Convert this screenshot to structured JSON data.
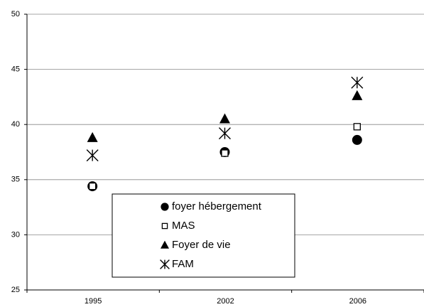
{
  "chart_data": {
    "type": "scatter",
    "categories": [
      "1995",
      "2002",
      "2006"
    ],
    "series": [
      {
        "name": "foyer hébergement",
        "marker": "circle",
        "color": "#000000",
        "values": [
          34.4,
          37.5,
          38.6
        ]
      },
      {
        "name": "MAS",
        "marker": "square",
        "color": "#000000",
        "values": [
          34.4,
          37.4,
          39.8
        ]
      },
      {
        "name": "Foyer de vie",
        "marker": "triangle",
        "color": "#000000",
        "values": [
          38.8,
          40.5,
          42.6
        ]
      },
      {
        "name": "FAM",
        "marker": "asterisk",
        "color": "#000000",
        "values": [
          37.2,
          39.2,
          43.8
        ]
      }
    ],
    "ylim": [
      25,
      50
    ],
    "yticks": [
      25,
      30,
      35,
      40,
      45,
      50
    ],
    "grid": true,
    "legend": "bottom"
  }
}
